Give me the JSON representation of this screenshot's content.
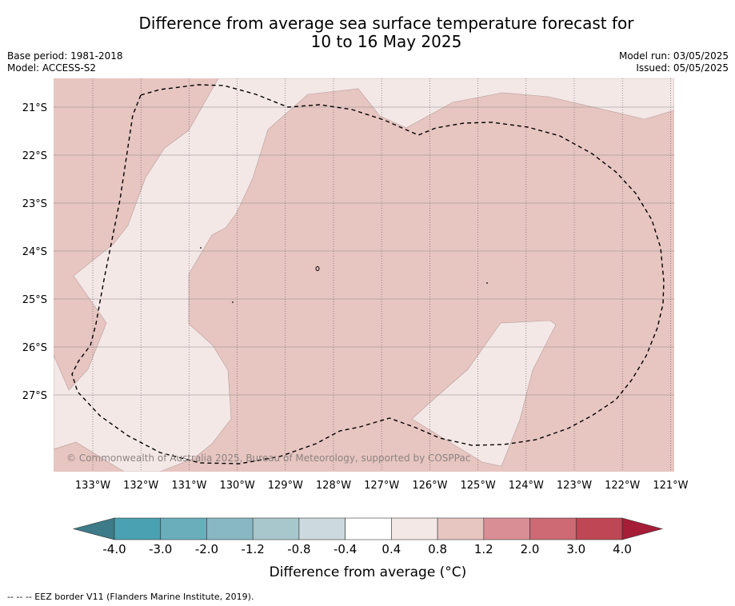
{
  "header": {
    "title_line1": "Difference from average sea surface temperature forecast for",
    "title_line2": "10 to 16 May 2025",
    "base_period": "Base period: 1981-2018",
    "model": "Model: ACCESS-S2",
    "model_run": "Model run: 03/05/2025",
    "issued": "Issued: 05/05/2025"
  },
  "map": {
    "copyright": "© Commonwealth of Australia 2025, Bureau of Meteorology, supported by COSPPac",
    "lat_labels": [
      "21°S",
      "22°S",
      "23°S",
      "24°S",
      "25°S",
      "26°S",
      "27°S"
    ],
    "lon_labels": [
      "133°W",
      "132°W",
      "131°W",
      "130°W",
      "129°W",
      "128°W",
      "127°W",
      "126°W",
      "125°W",
      "124°W",
      "123°W",
      "122°W",
      "121°W"
    ],
    "colors": {
      "anomaly_0_4_to_0_8": "#f4e8e7",
      "anomaly_0_8_to_1_2": "#e7c5c1",
      "eez_border": "#000000"
    }
  },
  "colorbar": {
    "labels": [
      "-4.0",
      "-3.0",
      "-2.0",
      "-1.2",
      "-0.8",
      "-0.4",
      "0.4",
      "0.8",
      "1.2",
      "2.0",
      "3.0",
      "4.0"
    ],
    "colors": [
      "#3c7b87",
      "#4aa1b1",
      "#6aaebc",
      "#88b8c4",
      "#a8c7cd",
      "#ccd9de",
      "#ffffff",
      "#f4e8e7",
      "#e7c5c1",
      "#d98e95",
      "#cd6a73",
      "#be4655",
      "#a51d36"
    ],
    "title": "Difference from average (°C)"
  },
  "footer": {
    "note": "--  --  -- EEZ border V11 (Flanders Marine Institute, 2019)."
  }
}
